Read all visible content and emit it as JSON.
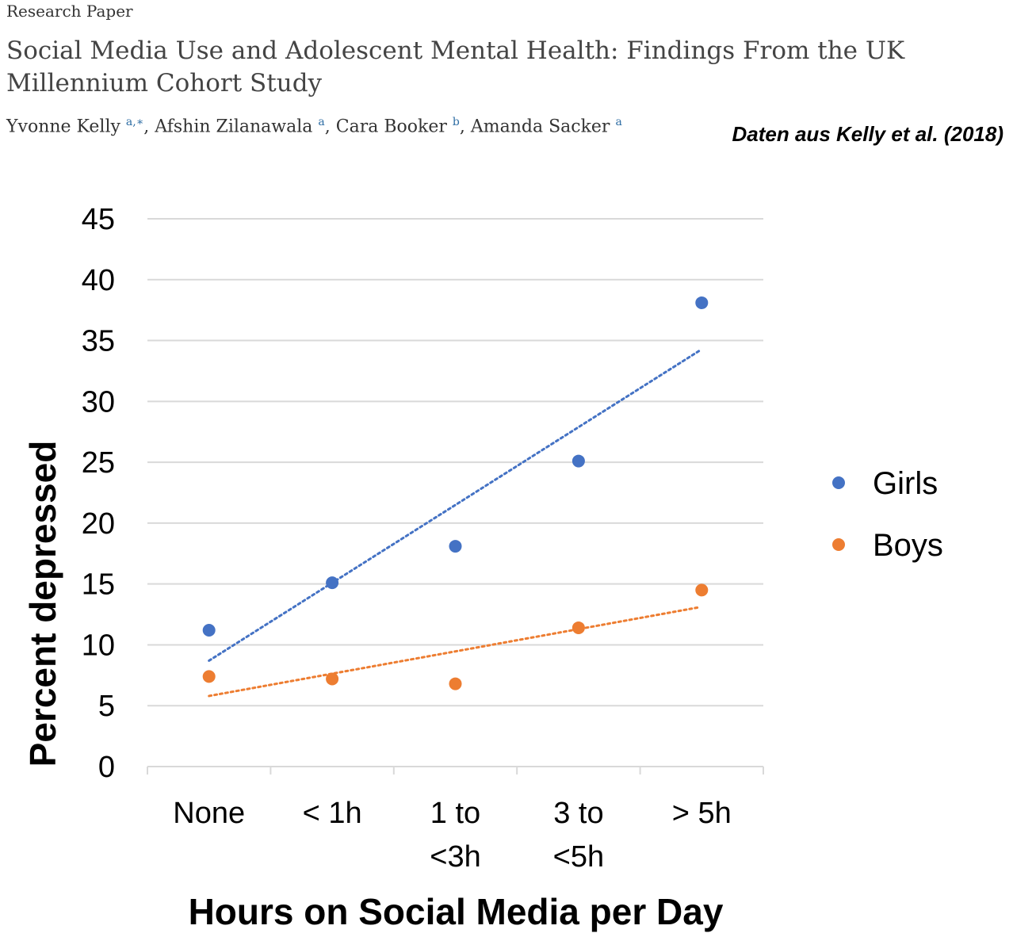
{
  "header": {
    "label": "Research Paper",
    "title": "Social Media Use and Adolescent Mental Health: Findings From the UK Millennium Cohort Study",
    "authors": [
      {
        "name": "Yvonne Kelly",
        "sup": "a,∗"
      },
      {
        "name": "Afshin Zilanawala",
        "sup": "a"
      },
      {
        "name": "Cara Booker",
        "sup": "b"
      },
      {
        "name": "Amanda Sacker",
        "sup": "a"
      }
    ],
    "credit": "Daten aus Kelly et al. (2018)"
  },
  "chart_data": {
    "type": "scatter",
    "title": "",
    "xlabel": "Hours on Social Media per Day",
    "ylabel": "Percent depressed",
    "categories": [
      [
        "None"
      ],
      [
        "< 1h"
      ],
      [
        "1 to",
        "<3h"
      ],
      [
        "3 to",
        "<5h"
      ],
      [
        "> 5h"
      ]
    ],
    "ylim": [
      0,
      45
    ],
    "yticks": [
      0,
      5,
      10,
      15,
      20,
      25,
      30,
      35,
      40,
      45
    ],
    "grid": true,
    "legend": "right",
    "series": [
      {
        "name": "Girls",
        "color": "#4472C4",
        "values": [
          11.2,
          15.1,
          18.1,
          25.1,
          38.1
        ],
        "trendline": [
          8.7,
          15.1,
          21.5,
          27.8,
          34.2
        ]
      },
      {
        "name": "Boys",
        "color": "#ED7D31",
        "values": [
          7.4,
          7.2,
          6.8,
          11.4,
          14.5
        ],
        "trendline": [
          5.8,
          7.7,
          9.5,
          11.3,
          13.1
        ]
      }
    ]
  }
}
